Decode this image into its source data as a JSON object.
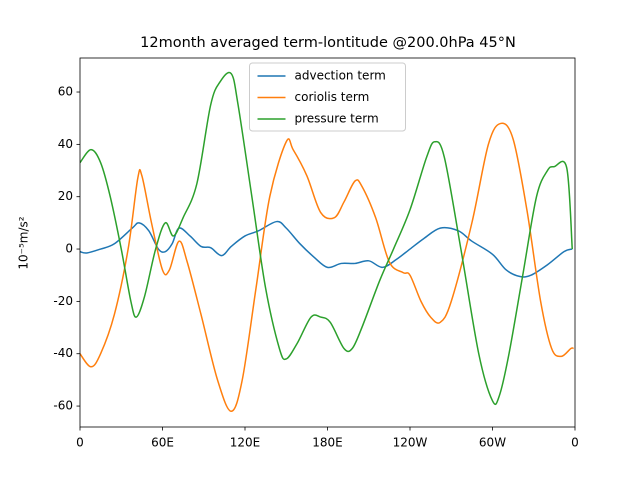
{
  "chart_data": {
    "type": "line",
    "title": "12month averaged term-lontitude @200.0hPa 45°N",
    "y_label": "10⁻⁵m/s²",
    "xlim": [
      0,
      360
    ],
    "xticks": [
      0,
      {
        "value": 60,
        "label": "60E"
      },
      {
        "value": 120,
        "label": "120E"
      },
      {
        "value": 180,
        "label": "180E"
      },
      {
        "value": 240,
        "label": "120W"
      },
      {
        "value": 300,
        "label": "60W"
      },
      {
        "value": 360,
        "label": "0"
      }
    ],
    "ylim": [
      -68,
      73
    ],
    "yticks": [
      -60,
      -40,
      -20,
      0,
      20,
      40,
      60
    ],
    "legend": "upper center",
    "series": [
      {
        "name": "advection term",
        "color": "#1f77b4",
        "x": [
          0,
          5,
          15,
          25,
          38,
          43,
          50,
          57,
          62,
          67,
          72,
          80,
          88,
          95,
          103,
          110,
          120,
          130,
          143,
          150,
          160,
          170,
          180,
          190,
          200,
          210,
          220,
          230,
          240,
          250,
          262,
          275,
          285,
          300,
          310,
          320,
          328,
          340,
          352,
          358
        ],
        "values": [
          -1,
          -1.5,
          0,
          2,
          8,
          10,
          7,
          0,
          -1,
          2,
          8,
          5,
          1,
          0.5,
          -2.5,
          1,
          5,
          7,
          10.5,
          8,
          2,
          -3,
          -7,
          -5.5,
          -5.5,
          -4.5,
          -7,
          -4,
          0,
          4,
          8,
          7,
          3,
          -2,
          -8,
          -10.5,
          -10,
          -6,
          -1,
          0
        ]
      },
      {
        "name": "coriolis term",
        "color": "#ff7f0e",
        "x": [
          0,
          8,
          15,
          25,
          35,
          42,
          45,
          52,
          60,
          65,
          72,
          78,
          88,
          100,
          110,
          118,
          128,
          138,
          150,
          155,
          165,
          175,
          185,
          192,
          200,
          205,
          215,
          225,
          235,
          240,
          248,
          255,
          262,
          270,
          285,
          297,
          306,
          315,
          325,
          335,
          343,
          350,
          357,
          359
        ],
        "values": [
          -40,
          -45,
          -40,
          -25,
          0,
          27,
          28,
          10,
          -8,
          -8,
          3,
          -5,
          -25,
          -50,
          -62,
          -50,
          -15,
          20,
          41,
          38,
          28,
          14,
          12,
          18,
          26,
          24,
          12,
          -5,
          -9,
          -10,
          -20,
          -26,
          -28,
          -20,
          10,
          40,
          48,
          42,
          15,
          -20,
          -38,
          -41,
          -38,
          -38
        ]
      },
      {
        "name": "pressure term",
        "color": "#2ca02c",
        "x": [
          0,
          8,
          15,
          22,
          30,
          37,
          41,
          47,
          55,
          62,
          68,
          75,
          85,
          95,
          102,
          110,
          115,
          125,
          135,
          145,
          150,
          158,
          168,
          175,
          182,
          192,
          198,
          205,
          218,
          228,
          240,
          252,
          258,
          265,
          277,
          290,
          300,
          305,
          312,
          322,
          332,
          340,
          345,
          354,
          358
        ],
        "values": [
          33,
          38,
          33,
          20,
          0,
          -20,
          -26,
          -18,
          0,
          10,
          5,
          12,
          25,
          55,
          64,
          67,
          55,
          20,
          -15,
          -38,
          -42,
          -36,
          -26,
          -26,
          -28,
          -38,
          -38,
          -30,
          -12,
          0,
          15,
          35,
          41,
          35,
          0,
          -40,
          -58,
          -56,
          -40,
          -10,
          20,
          30,
          31.5,
          31,
          0
        ]
      }
    ]
  }
}
